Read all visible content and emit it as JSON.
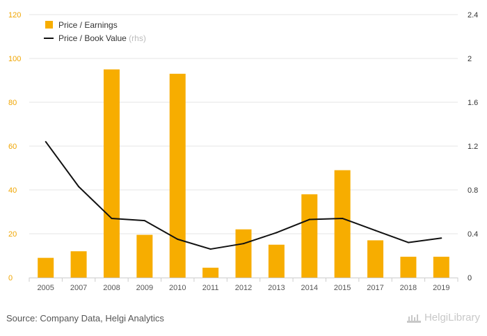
{
  "chart_data": {
    "type": "bar",
    "categories": [
      "2005",
      "2007",
      "2008",
      "2009",
      "2010",
      "2011",
      "2012",
      "2013",
      "2014",
      "2015",
      "2017",
      "2018",
      "2019"
    ],
    "series": [
      {
        "name": "Price / Earnings",
        "type": "bar",
        "axis": "left",
        "color": "#f7ad00",
        "values": [
          9,
          12,
          95,
          19.5,
          93,
          4.5,
          22,
          15,
          38,
          49,
          17,
          9.5,
          9.5
        ]
      },
      {
        "name": "Price / Book Value",
        "name_suffix": "(rhs)",
        "type": "line",
        "axis": "right",
        "color": "#111111",
        "values": [
          1.24,
          0.83,
          0.54,
          0.52,
          0.35,
          0.26,
          0.31,
          0.41,
          0.53,
          0.54,
          0.43,
          0.32,
          0.36
        ]
      }
    ],
    "y_left": {
      "ylim": [
        0,
        120
      ],
      "ticks": [
        "0",
        "20",
        "40",
        "60",
        "80",
        "100",
        "120"
      ]
    },
    "y_right": {
      "ylim": [
        0,
        2.4
      ],
      "ticks": [
        "0",
        "0.4",
        "0.8",
        "1.2",
        "1.6",
        "2",
        "2.4"
      ]
    },
    "grid": true,
    "legend_position": "top-left"
  },
  "footer": {
    "source": "Source: Company Data, Helgi Analytics",
    "logo_text": "HelgiLibrary"
  },
  "colors": {
    "left_tick": "#f0a500",
    "grid": "#e6e6e6"
  }
}
